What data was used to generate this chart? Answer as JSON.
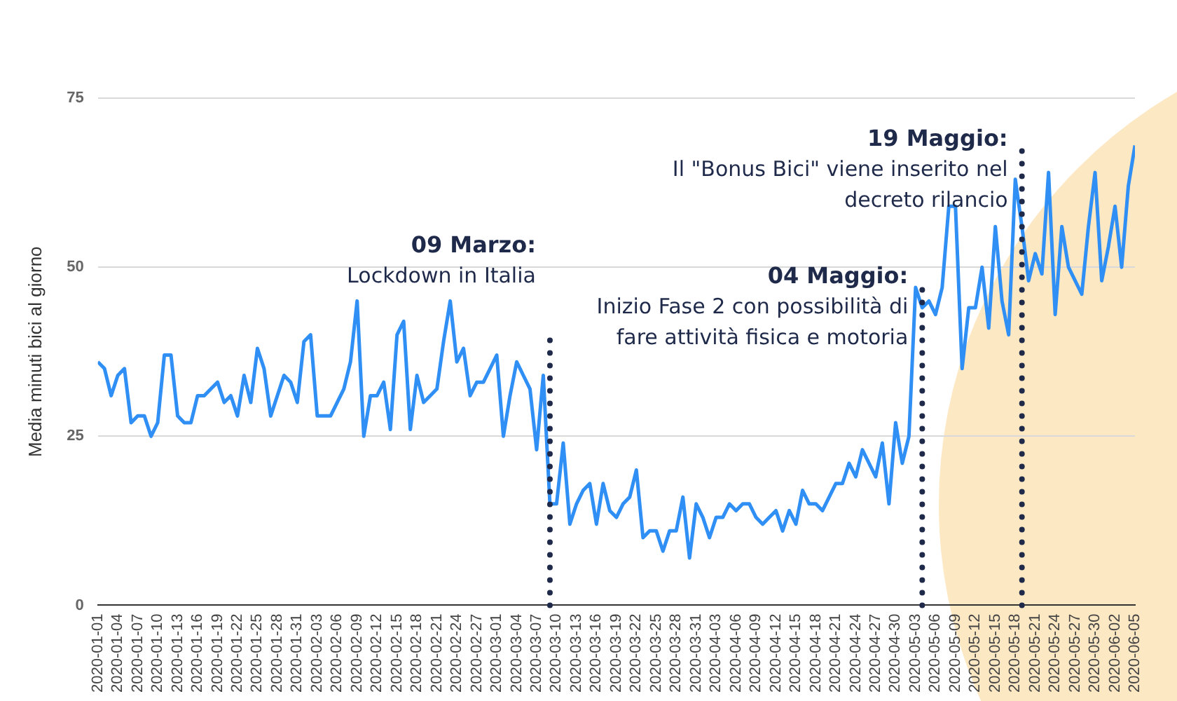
{
  "chart_data": {
    "type": "line",
    "ylabel": "Media minuti bici al giorno",
    "x": [
      "2020-01-01",
      "2020-01-02",
      "2020-01-03",
      "2020-01-04",
      "2020-01-05",
      "2020-01-06",
      "2020-01-07",
      "2020-01-08",
      "2020-01-09",
      "2020-01-10",
      "2020-01-11",
      "2020-01-12",
      "2020-01-13",
      "2020-01-14",
      "2020-01-15",
      "2020-01-16",
      "2020-01-17",
      "2020-01-18",
      "2020-01-19",
      "2020-01-20",
      "2020-01-21",
      "2020-01-22",
      "2020-01-23",
      "2020-01-24",
      "2020-01-25",
      "2020-01-26",
      "2020-01-27",
      "2020-01-28",
      "2020-01-29",
      "2020-01-30",
      "2020-01-31",
      "2020-02-01",
      "2020-02-02",
      "2020-02-03",
      "2020-02-04",
      "2020-02-05",
      "2020-02-06",
      "2020-02-07",
      "2020-02-08",
      "2020-02-09",
      "2020-02-10",
      "2020-02-11",
      "2020-02-12",
      "2020-02-13",
      "2020-02-14",
      "2020-02-15",
      "2020-02-16",
      "2020-02-17",
      "2020-02-18",
      "2020-02-19",
      "2020-02-20",
      "2020-02-21",
      "2020-02-22",
      "2020-02-23",
      "2020-02-24",
      "2020-02-25",
      "2020-02-26",
      "2020-02-27",
      "2020-02-28",
      "2020-02-29",
      "2020-03-01",
      "2020-03-02",
      "2020-03-03",
      "2020-03-04",
      "2020-03-05",
      "2020-03-06",
      "2020-03-07",
      "2020-03-08",
      "2020-03-09",
      "2020-03-10",
      "2020-03-11",
      "2020-03-12",
      "2020-03-13",
      "2020-03-14",
      "2020-03-15",
      "2020-03-16",
      "2020-03-17",
      "2020-03-18",
      "2020-03-19",
      "2020-03-20",
      "2020-03-21",
      "2020-03-22",
      "2020-03-23",
      "2020-03-24",
      "2020-03-25",
      "2020-03-26",
      "2020-03-27",
      "2020-03-28",
      "2020-03-29",
      "2020-03-30",
      "2020-03-31",
      "2020-04-01",
      "2020-04-02",
      "2020-04-03",
      "2020-04-04",
      "2020-04-05",
      "2020-04-06",
      "2020-04-07",
      "2020-04-08",
      "2020-04-09",
      "2020-04-10",
      "2020-04-11",
      "2020-04-12",
      "2020-04-13",
      "2020-04-14",
      "2020-04-15",
      "2020-04-16",
      "2020-04-17",
      "2020-04-18",
      "2020-04-19",
      "2020-04-20",
      "2020-04-21",
      "2020-04-22",
      "2020-04-23",
      "2020-04-24",
      "2020-04-25",
      "2020-04-26",
      "2020-04-27",
      "2020-04-28",
      "2020-04-29",
      "2020-04-30",
      "2020-05-01",
      "2020-05-02",
      "2020-05-03",
      "2020-05-04",
      "2020-05-05",
      "2020-05-06",
      "2020-05-07",
      "2020-05-08",
      "2020-05-09",
      "2020-05-10",
      "2020-05-11",
      "2020-05-12",
      "2020-05-13",
      "2020-05-14",
      "2020-05-15",
      "2020-05-16",
      "2020-05-17",
      "2020-05-18",
      "2020-05-19",
      "2020-05-20",
      "2020-05-21",
      "2020-05-22",
      "2020-05-23",
      "2020-05-24",
      "2020-05-25",
      "2020-05-26",
      "2020-05-27",
      "2020-05-28",
      "2020-05-29",
      "2020-05-30",
      "2020-05-31",
      "2020-06-01",
      "2020-06-02",
      "2020-06-03",
      "2020-06-04",
      "2020-06-05"
    ],
    "series": [
      {
        "color": "#2f8ff5",
        "values": [
          36,
          35,
          31,
          34,
          35,
          27,
          28,
          28,
          25,
          27,
          37,
          37,
          28,
          27,
          27,
          31,
          31,
          32,
          33,
          30,
          31,
          28,
          34,
          30,
          38,
          35,
          28,
          31,
          34,
          33,
          30,
          39,
          40,
          28,
          28,
          28,
          30,
          32,
          36,
          45,
          25,
          31,
          31,
          33,
          26,
          40,
          42,
          26,
          34,
          30,
          31,
          32,
          39,
          45,
          36,
          38,
          31,
          33,
          33,
          35,
          37,
          25,
          31,
          36,
          34,
          32,
          23,
          34,
          15,
          15,
          24,
          12,
          15,
          17,
          18,
          12,
          18,
          14,
          13,
          15,
          16,
          20,
          10,
          11,
          11,
          8,
          11,
          11,
          16,
          7,
          15,
          13,
          10,
          13,
          13,
          15,
          14,
          15,
          15,
          13,
          12,
          13,
          14,
          11,
          14,
          12,
          17,
          15,
          15,
          14,
          16,
          18,
          18,
          21,
          19,
          23,
          21,
          19,
          24,
          15,
          27,
          21,
          25,
          47,
          44,
          45,
          43,
          47,
          59,
          59,
          35,
          44,
          44,
          50,
          41,
          56,
          45,
          40,
          63,
          56,
          48,
          52,
          49,
          64,
          43,
          56,
          50,
          48,
          46,
          56,
          64,
          48,
          53,
          59,
          50,
          62,
          68
        ]
      }
    ],
    "xlim": [
      "2020-01-01",
      "2020-06-05"
    ],
    "xticks": [
      "2020-01-01",
      "2020-01-04",
      "2020-01-07",
      "2020-01-10",
      "2020-01-13",
      "2020-01-16",
      "2020-01-19",
      "2020-01-22",
      "2020-01-25",
      "2020-01-28",
      "2020-01-31",
      "2020-02-03",
      "2020-02-06",
      "2020-02-09",
      "2020-02-12",
      "2020-02-15",
      "2020-02-18",
      "2020-02-21",
      "2020-02-24",
      "2020-02-27",
      "2020-03-01",
      "2020-03-04",
      "2020-03-07",
      "2020-03-10",
      "2020-03-13",
      "2020-03-16",
      "2020-03-19",
      "2020-03-22",
      "2020-03-25",
      "2020-03-28",
      "2020-03-31",
      "2020-04-03",
      "2020-04-06",
      "2020-04-09",
      "2020-04-12",
      "2020-04-15",
      "2020-04-18",
      "2020-04-21",
      "2020-04-24",
      "2020-04-27",
      "2020-04-30",
      "2020-05-03",
      "2020-05-06",
      "2020-05-09",
      "2020-05-12",
      "2020-05-15",
      "2020-05-18",
      "2020-05-21",
      "2020-05-24",
      "2020-05-27",
      "2020-05-30",
      "2020-06-02",
      "2020-06-05"
    ],
    "ylim": [
      0,
      75
    ],
    "yticks": [
      0,
      25,
      50,
      75
    ],
    "grid": "y",
    "legend": false,
    "marker": "none",
    "line_style": "solid",
    "ref_lines": [
      {
        "axis": "x",
        "value": "2020-03-09",
        "label": "09 Marzo:\nLockdown in Italia",
        "color": "#1f2a4a",
        "line_style": "dotted"
      },
      {
        "axis": "x",
        "value": "2020-05-04",
        "label": "04 Maggio:\nInizio Fase 2 con possibilità di\nfare attività fisica e motoria",
        "color": "#1f2a4a",
        "line_style": "dotted"
      },
      {
        "axis": "x",
        "value": "2020-05-19",
        "label": "19 Maggio:\nIl \"Bonus Bici\" viene inserito nel\ndecreto rilancio",
        "color": "#1f2a4a",
        "line_style": "dotted"
      }
    ]
  }
}
